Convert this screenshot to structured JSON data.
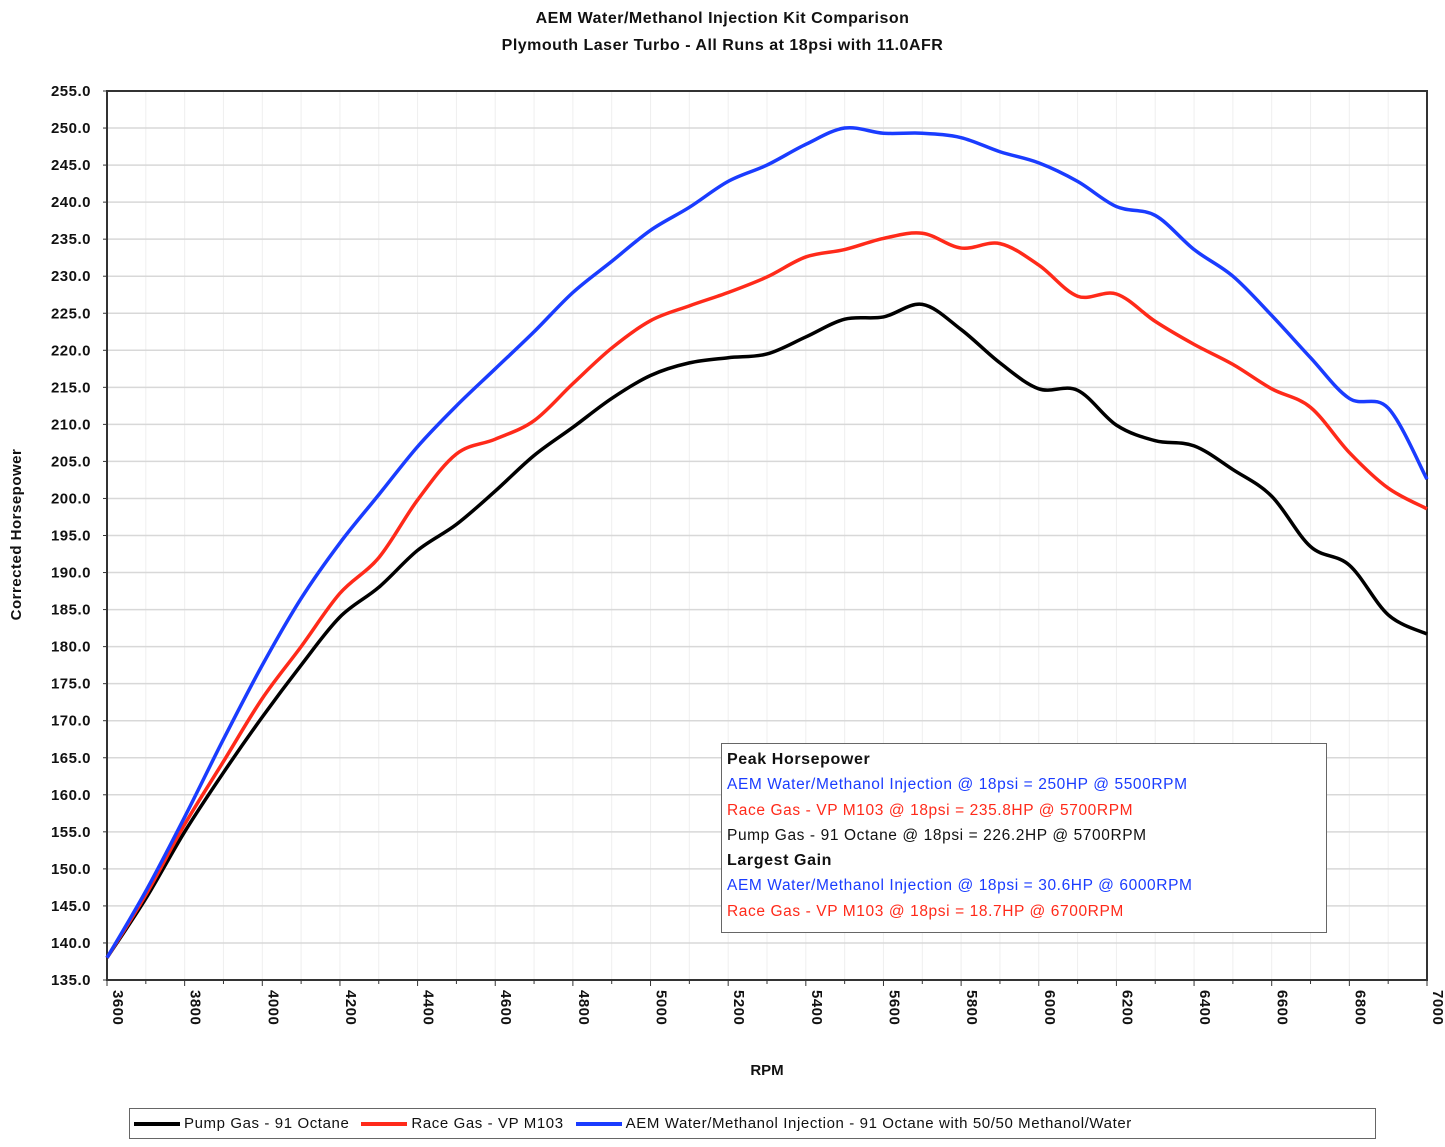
{
  "chart_data": {
    "type": "line",
    "title": "AEM Water/Methanol Injection Kit Comparison",
    "subtitle": "Plymouth Laser Turbo - All Runs at 18psi with 11.0AFR",
    "xlabel": "RPM",
    "ylabel": "Corrected Horsepower",
    "xlim": [
      3600,
      7000
    ],
    "ylim": [
      135,
      255
    ],
    "x_ticks": [
      "3600",
      "3800",
      "4000",
      "4200",
      "4400",
      "4600",
      "4800",
      "5000",
      "5200",
      "5400",
      "5600",
      "5800",
      "6000",
      "6200",
      "6400",
      "6600",
      "6800",
      "7000"
    ],
    "y_ticks": [
      "255.0",
      "250.0",
      "245.0",
      "240.0",
      "235.0",
      "230.0",
      "225.0",
      "220.0",
      "215.0",
      "210.0",
      "205.0",
      "200.0",
      "195.0",
      "190.0",
      "185.0",
      "180.0",
      "175.0",
      "170.0",
      "165.0",
      "160.0",
      "155.0",
      "150.0",
      "145.0",
      "140.0",
      "135.0"
    ],
    "grid": true,
    "legend_placement": "bottom",
    "x": [
      3600,
      3700,
      3800,
      3900,
      4000,
      4100,
      4200,
      4300,
      4400,
      4500,
      4600,
      4700,
      4800,
      4900,
      5000,
      5100,
      5200,
      5300,
      5400,
      5500,
      5600,
      5700,
      5800,
      5900,
      6000,
      6100,
      6200,
      6300,
      6400,
      6500,
      6600,
      6700,
      6800,
      6900,
      7000
    ],
    "series": [
      {
        "name": "Pump Gas - 91 Octane",
        "color": "#000000",
        "values": [
          138,
          146,
          155,
          163,
          170.5,
          177.5,
          184,
          188,
          193,
          196.5,
          201,
          205.8,
          209.6,
          213.5,
          216.6,
          218.3,
          219,
          219.5,
          221.8,
          224.2,
          224.5,
          226.2,
          222.8,
          218.3,
          214.8,
          214.6,
          209.9,
          207.8,
          207.1,
          203.9,
          200.3,
          193.5,
          191,
          184.3,
          181.7
        ]
      },
      {
        "name": "Race Gas - VP M103",
        "color": "#ff2a1a",
        "values": [
          138,
          146.5,
          156,
          164.5,
          173,
          180,
          187.2,
          192,
          199.8,
          206,
          208,
          210.5,
          215.5,
          220.3,
          224,
          226,
          227.8,
          229.9,
          232.6,
          233.6,
          235.1,
          235.8,
          233.8,
          234.4,
          231.5,
          227.3,
          227.6,
          223.9,
          220.8,
          218.1,
          214.8,
          212.3,
          206.2,
          201.4,
          198.6
        ]
      },
      {
        "name": "AEM Water/Methanol Injection - 91 Octane with 50/50 Methanol/Water",
        "color": "#1a3cff",
        "values": [
          138,
          147,
          157,
          167.5,
          177.5,
          186.5,
          194,
          200.5,
          207,
          212.5,
          217.5,
          222.5,
          227.8,
          232,
          236.2,
          239.3,
          242.8,
          245,
          247.8,
          250,
          249.3,
          249.3,
          248.7,
          246.8,
          245.3,
          242.8,
          239.4,
          238.2,
          233.6,
          230,
          224.7,
          219,
          213.5,
          212.2,
          202.6
        ]
      }
    ],
    "annotation": {
      "peak_heading": "Peak Horsepower",
      "peak_lines": [
        {
          "text": "AEM Water/Methanol Injection @ 18psi = 250HP @ 5500RPM",
          "color": "#1a3cff"
        },
        {
          "text": "Race Gas - VP M103 @ 18psi = 235.8HP @ 5700RPM",
          "color": "#ff2a1a"
        },
        {
          "text": "Pump Gas - 91 Octane @ 18psi = 226.2HP @ 5700RPM",
          "color": "#111111"
        }
      ],
      "gain_heading": "Largest Gain",
      "gain_lines": [
        {
          "text": "AEM Water/Methanol Injection @ 18psi = 30.6HP @ 6000RPM",
          "color": "#1a3cff"
        },
        {
          "text": "Race Gas - VP M103 @ 18psi = 18.7HP @ 6700RPM",
          "color": "#ff2a1a"
        }
      ]
    }
  }
}
